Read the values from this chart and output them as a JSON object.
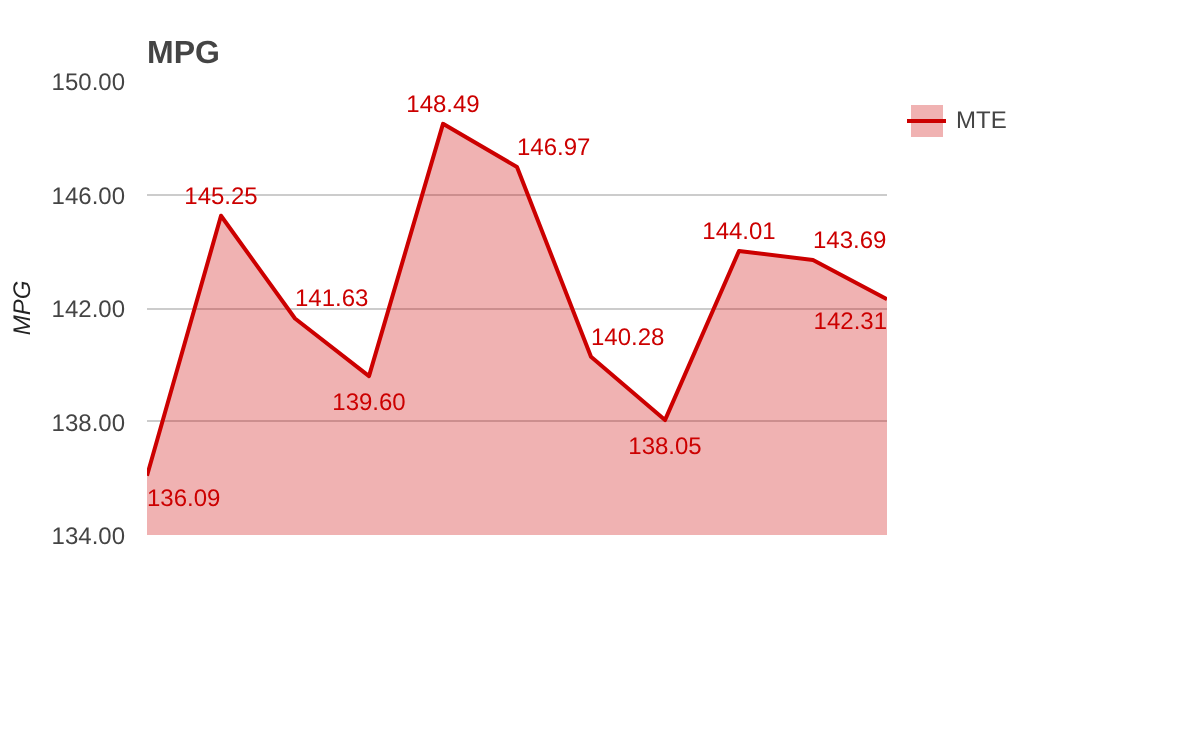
{
  "chart_data": {
    "type": "area",
    "title": "MPG",
    "ylabel": "MPG",
    "categories": [
      null,
      null,
      null,
      null,
      null,
      null,
      null,
      null,
      null,
      null,
      null
    ],
    "series": [
      {
        "name": "MTE",
        "color": "#cc0000",
        "values": [
          136.09,
          145.25,
          141.63,
          139.6,
          148.49,
          146.97,
          140.28,
          138.05,
          144.01,
          143.69,
          142.31
        ],
        "value_labels": [
          "136.09",
          "145.25",
          "141.63",
          "139.60",
          "148.49",
          "146.97",
          "140.28",
          "138.05",
          "144.01",
          "143.69",
          "142.31"
        ]
      }
    ],
    "ylim": [
      134,
      150
    ],
    "yticks": [
      {
        "value": 134,
        "label": "134.00"
      },
      {
        "value": 138,
        "label": "138.00"
      },
      {
        "value": 142,
        "label": "142.00"
      },
      {
        "value": 146,
        "label": "146.00"
      },
      {
        "value": 150,
        "label": "150.00"
      }
    ],
    "grid": "y",
    "legend": "right",
    "tick_labels": "y"
  }
}
